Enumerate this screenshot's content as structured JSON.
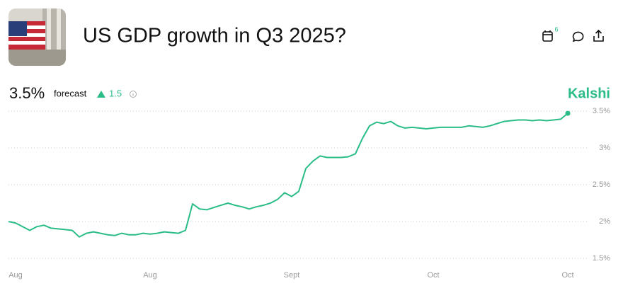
{
  "header": {
    "title": "US GDP growth in Q3 2025?",
    "badge": "6"
  },
  "forecast": {
    "value": "3.5%",
    "label": "forecast",
    "change": "1.5"
  },
  "brand": "Kalshi",
  "chart_data": {
    "type": "line",
    "color": "#2bbd87",
    "grid": true,
    "categories": [
      null,
      "Aug",
      null,
      null,
      null,
      null,
      null,
      null,
      null,
      null,
      null,
      null,
      null,
      null,
      null,
      null,
      null,
      null,
      null,
      null,
      "Aug",
      null,
      null,
      null,
      null,
      null,
      null,
      null,
      null,
      null,
      null,
      null,
      null,
      null,
      null,
      null,
      null,
      null,
      null,
      null,
      "Sept",
      null,
      null,
      null,
      null,
      null,
      null,
      null,
      null,
      null,
      null,
      null,
      null,
      null,
      null,
      null,
      null,
      null,
      null,
      null,
      "Oct",
      null,
      null,
      null,
      null,
      null,
      null,
      null,
      null,
      null,
      null,
      null,
      null,
      null,
      null,
      null,
      null,
      null,
      null,
      "Oct"
    ],
    "values": [
      2.0,
      1.98,
      1.93,
      1.88,
      1.93,
      1.95,
      1.91,
      1.9,
      1.89,
      1.88,
      1.79,
      1.84,
      1.86,
      1.84,
      1.82,
      1.81,
      1.84,
      1.82,
      1.82,
      1.84,
      1.83,
      1.84,
      1.86,
      1.85,
      1.84,
      1.88,
      2.24,
      2.17,
      2.16,
      2.19,
      2.22,
      2.25,
      2.22,
      2.2,
      2.17,
      2.2,
      2.22,
      2.25,
      2.3,
      2.39,
      2.34,
      2.41,
      2.72,
      2.82,
      2.89,
      2.87,
      2.87,
      2.87,
      2.88,
      2.92,
      3.13,
      3.3,
      3.35,
      3.33,
      3.36,
      3.3,
      3.27,
      3.28,
      3.27,
      3.26,
      3.27,
      3.28,
      3.28,
      3.28,
      3.28,
      3.3,
      3.29,
      3.28,
      3.3,
      3.33,
      3.36,
      3.37,
      3.38,
      3.38,
      3.37,
      3.38,
      3.37,
      3.38,
      3.39,
      3.47
    ],
    "ylim": [
      1.4,
      3.6
    ],
    "yticks": [
      {
        "value": 1.5,
        "label": "1.5%"
      },
      {
        "value": 2,
        "label": "2%"
      },
      {
        "value": 2.5,
        "label": "2.5%"
      },
      {
        "value": 3,
        "label": "3%"
      },
      {
        "value": 3.5,
        "label": "3.5%"
      }
    ]
  }
}
